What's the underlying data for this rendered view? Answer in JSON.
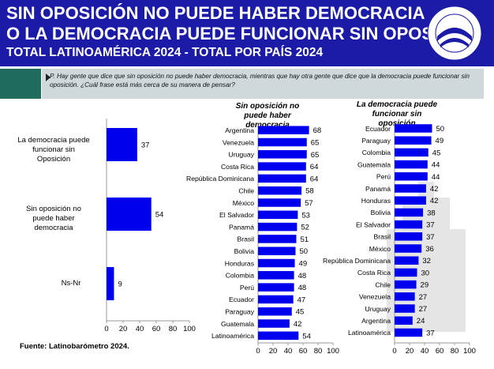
{
  "header": {
    "title_line1": "SIN OPOSICIÓN NO PUEDE HABER DEMOCRACIA",
    "title_line2": "O LA DEMOCRACIA PUEDE FUNCIONAR SIN OPOSICIÓN",
    "title_line3": "TOTAL LATINOAMÉRICA 2024 - TOTAL POR PAÍS 2024"
  },
  "question": "P. Hay gente que dice que sin oposición no puede haber democracia, mientras que hay otra gente que dice que la democracia puede funcionar sin oposición. ¿Cuál frase está más cerca de su manera de pensar?",
  "footer": "Fuente: Latinobarómetro 2024.",
  "colors": {
    "bar": "#0000ee",
    "header": "#1b1ba8",
    "question_bg": "#cfd9dc",
    "question_accent": "#1f6b5c"
  },
  "chart_data": [
    {
      "type": "bar",
      "orientation": "horizontal",
      "categories": [
        "La democracia puede funcionar sin Oposición",
        "Sin oposición no puede haber democracia",
        "Ns-Nr"
      ],
      "values": [
        37,
        54,
        9
      ],
      "xlim": [
        0,
        100
      ],
      "xticks": [
        0,
        20,
        40,
        60,
        80,
        100
      ]
    },
    {
      "type": "bar",
      "orientation": "horizontal",
      "title": "Sin oposición no puede haber democracia",
      "categories": [
        "Argentina",
        "Venezuela",
        "Uruguay",
        "Costa Rica",
        "República Dominicana",
        "Chile",
        "México",
        "El Salvador",
        "Panamá",
        "Brasil",
        "Bolivia",
        "Honduras",
        "Colombia",
        "Perú",
        "Ecuador",
        "Paraguay",
        "Guatemala",
        "Latinoamérica"
      ],
      "values": [
        68,
        65,
        65,
        64,
        64,
        58,
        57,
        53,
        52,
        51,
        50,
        49,
        48,
        48,
        47,
        45,
        42,
        54
      ],
      "xlim": [
        0,
        100
      ],
      "xticks": [
        0,
        20,
        40,
        60,
        80,
        100
      ]
    },
    {
      "type": "bar",
      "orientation": "horizontal",
      "title": "La democracia puede funcionar sin oposición",
      "categories": [
        "Ecuador",
        "Paraguay",
        "Colombia",
        "Guatemala",
        "Perú",
        "Panamá",
        "Honduras",
        "Bolivia",
        "El Salvador",
        "Brasil",
        "México",
        "República Dominicana",
        "Costa Rica",
        "Chile",
        "Venezuela",
        "Uruguay",
        "Argentina",
        "Latinoamérica"
      ],
      "values": [
        50,
        49,
        45,
        44,
        44,
        42,
        42,
        38,
        37,
        37,
        36,
        32,
        30,
        29,
        27,
        27,
        24,
        37
      ],
      "xlim": [
        0,
        100
      ],
      "xticks": [
        0,
        20,
        40,
        60,
        80,
        100
      ]
    }
  ]
}
